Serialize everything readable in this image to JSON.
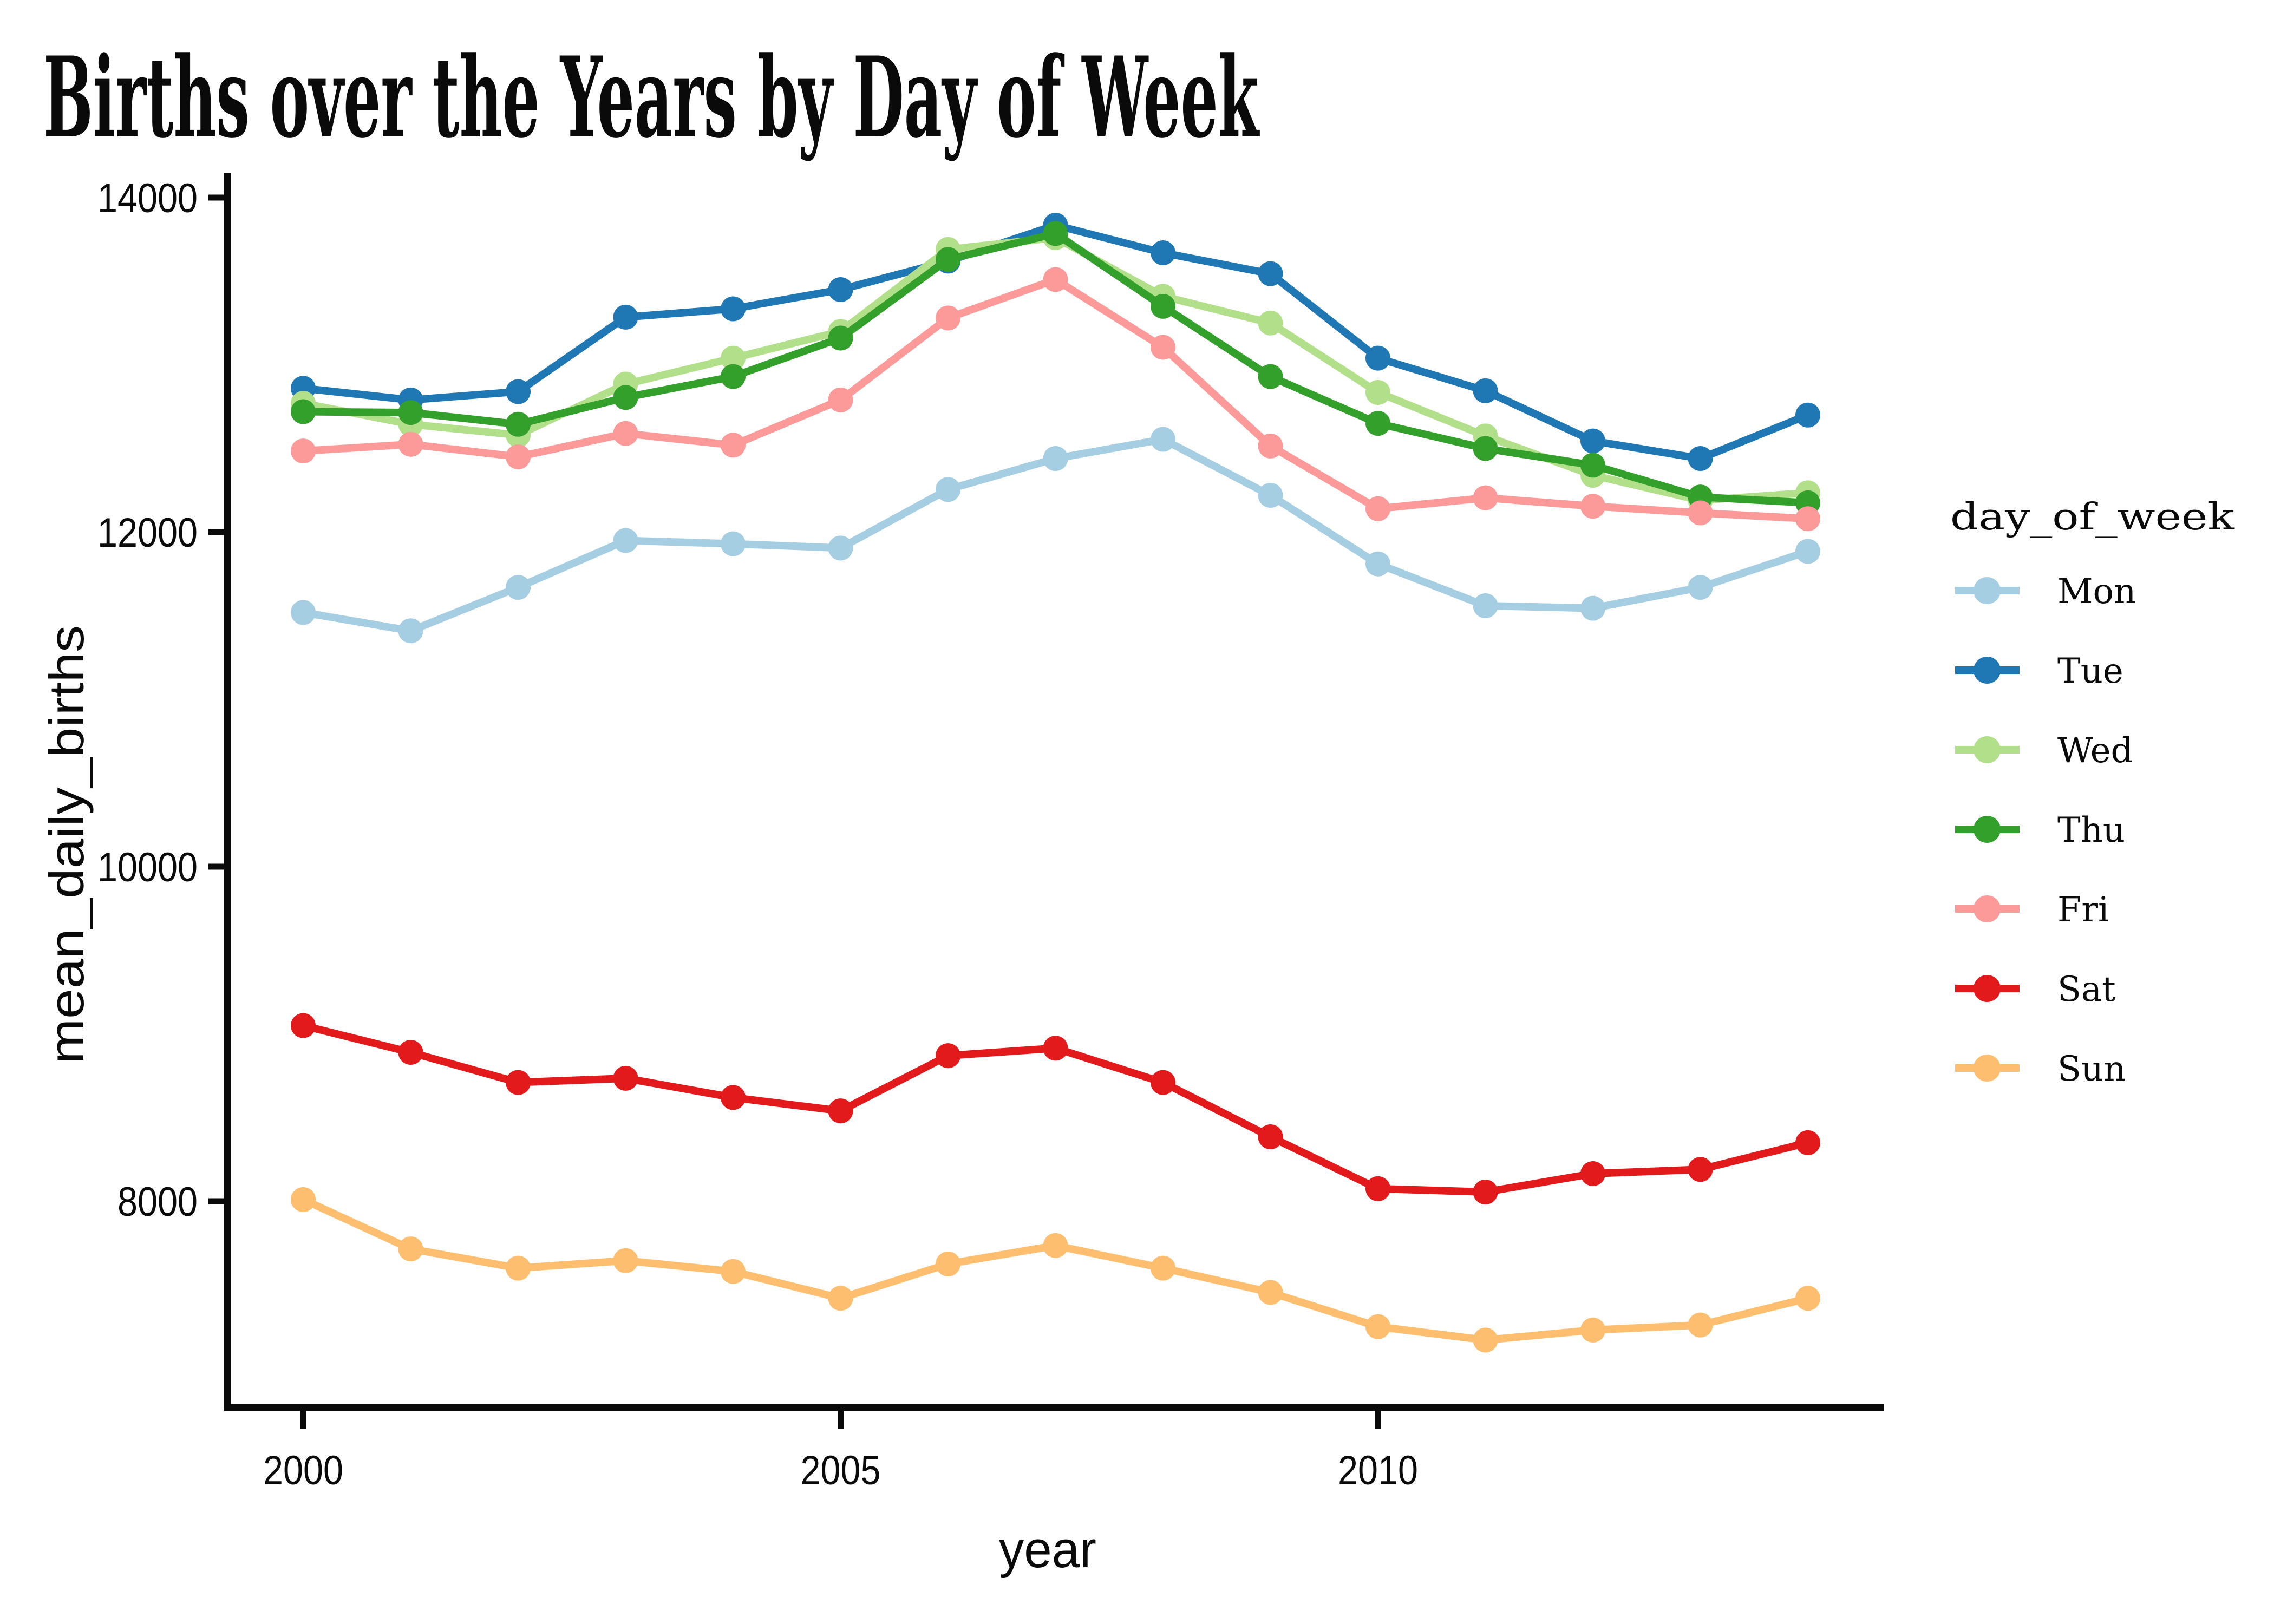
{
  "chart_data": {
    "type": "line",
    "title": "Births over the Years by Day of Week",
    "xlabel": "year",
    "ylabel": "mean_daily_births",
    "legend_title": "day_of_week",
    "legend_position": "right",
    "grid": false,
    "background": "#ffffff",
    "axis_color": "#0a0a0a",
    "text_color": "#0a0a0a",
    "x": [
      2000,
      2001,
      2002,
      2003,
      2004,
      2005,
      2006,
      2007,
      2008,
      2009,
      2010,
      2011,
      2012,
      2013,
      2014
    ],
    "xticks": [
      2000,
      2005,
      2010
    ],
    "yticks": [
      8000,
      10000,
      12000,
      14000
    ],
    "xlim": [
      1999.3,
      2014.7
    ],
    "ylim": [
      6730,
      14150
    ],
    "series": [
      {
        "name": "Mon",
        "color": "#a6cee3",
        "values": [
          11520,
          11410,
          11670,
          11950,
          11930,
          11905,
          12255,
          12440,
          12555,
          12220,
          11810,
          11560,
          11545,
          11670,
          11885
        ]
      },
      {
        "name": "Tue",
        "color": "#1f78b4",
        "values": [
          12860,
          12790,
          12840,
          13285,
          13335,
          13450,
          13620,
          13835,
          13670,
          13545,
          13040,
          12845,
          12545,
          12440,
          12700
        ]
      },
      {
        "name": "Wed",
        "color": "#b2df8a",
        "values": [
          12770,
          12645,
          12580,
          12885,
          13040,
          13200,
          13690,
          13760,
          13410,
          13250,
          12835,
          12575,
          12340,
          12190,
          12235
        ]
      },
      {
        "name": "Thu",
        "color": "#33a02c",
        "values": [
          12720,
          12715,
          12645,
          12805,
          12930,
          13160,
          13630,
          13785,
          13350,
          12930,
          12650,
          12500,
          12400,
          12210,
          12175
        ]
      },
      {
        "name": "Fri",
        "color": "#fb9a99",
        "values": [
          12485,
          12525,
          12450,
          12590,
          12520,
          12790,
          13280,
          13510,
          13105,
          12515,
          12140,
          12205,
          12155,
          12115,
          12080
        ]
      },
      {
        "name": "Sat",
        "color": "#e31a1c",
        "values": [
          9050,
          8890,
          8710,
          8735,
          8620,
          8540,
          8870,
          8915,
          8710,
          8385,
          8075,
          8055,
          8165,
          8190,
          8350
        ]
      },
      {
        "name": "Sun",
        "color": "#fdbf6f",
        "values": [
          8010,
          7715,
          7600,
          7645,
          7580,
          7420,
          7625,
          7735,
          7600,
          7455,
          7250,
          7170,
          7230,
          7260,
          7420
        ]
      }
    ]
  }
}
